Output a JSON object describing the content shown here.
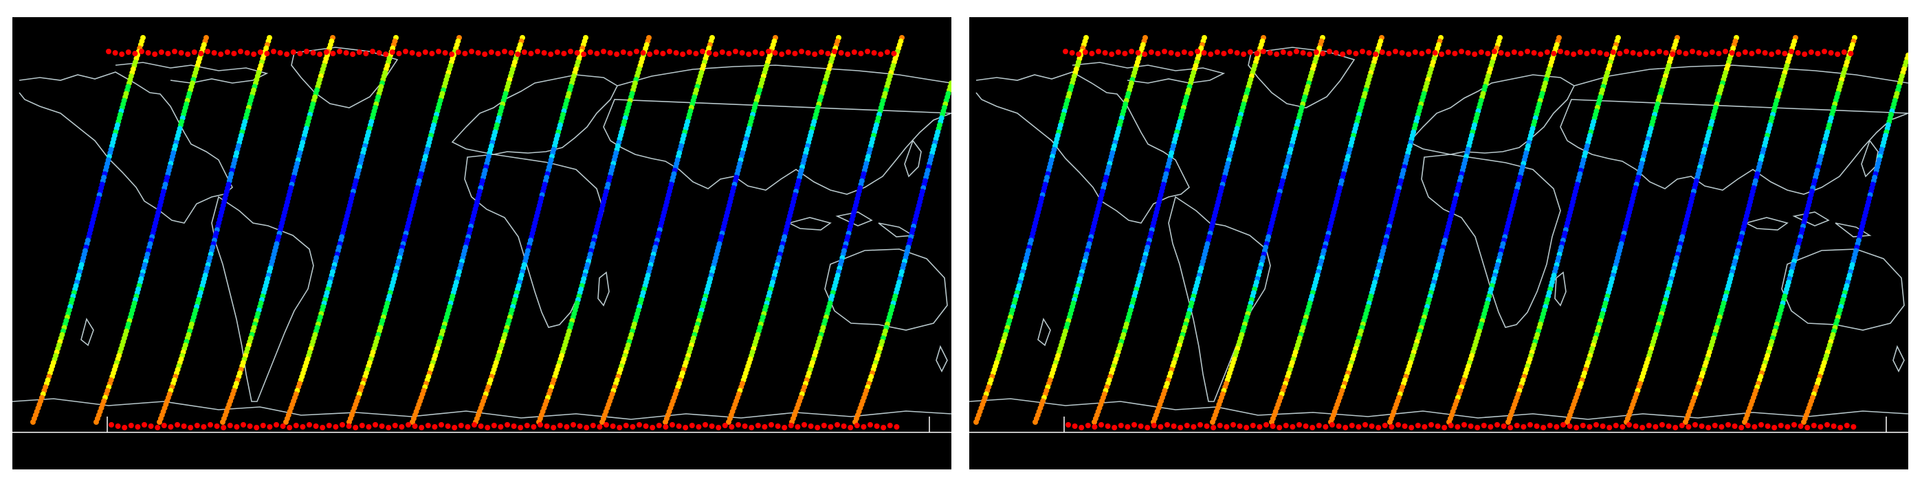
{
  "figure": {
    "description_free": true,
    "panels": [
      {
        "id": "left",
        "background": "#000000",
        "coastline_color": "#b8c8cc",
        "dot_color_scale": [
          "#0000ff",
          "#0080ff",
          "#00e0ff",
          "#00ff40",
          "#a0ff00",
          "#ffff00",
          "#ff8000",
          "#ff0000"
        ],
        "swath_count": 14
      },
      {
        "id": "right",
        "background": "#000000",
        "coastline_color": "#b8c8cc",
        "dot_color_scale": [
          "#0000ff",
          "#0080ff",
          "#00e0ff",
          "#00ff40",
          "#a0ff00",
          "#ffff00",
          "#ff8000",
          "#ff0000"
        ],
        "swath_count": 15
      }
    ]
  }
}
